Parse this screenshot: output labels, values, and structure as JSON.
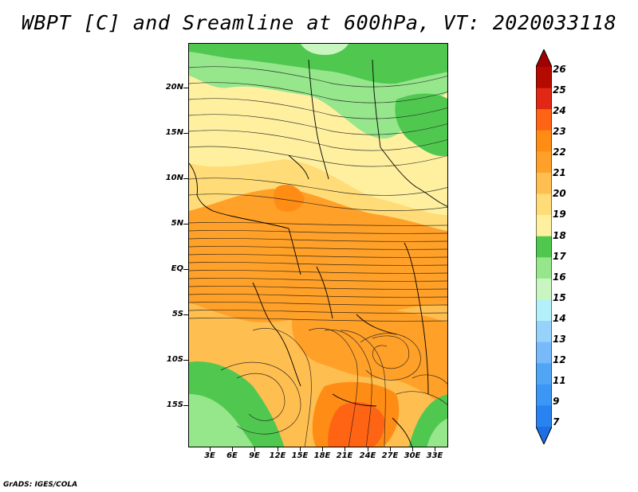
{
  "title": "WBPT [C] and Sreamline at 600hPa, VT: 2020033118",
  "footer": "GrADS: IGES/COLA",
  "lat_labels": [
    "20N",
    "15N",
    "10N",
    "5N",
    "EQ",
    "5S",
    "10S",
    "15S"
  ],
  "lon_labels": [
    "3E",
    "6E",
    "9E",
    "12E",
    "15E",
    "18E",
    "21E",
    "24E",
    "27E",
    "30E",
    "33E"
  ],
  "colorbar": {
    "levels": [
      "7",
      "9",
      "11",
      "12",
      "13",
      "14",
      "15",
      "16",
      "17",
      "18",
      "19",
      "20",
      "21",
      "22",
      "23",
      "24",
      "25",
      "26"
    ],
    "colors": [
      "#1e6ee6",
      "#2882f0",
      "#3c96f5",
      "#50a5f5",
      "#78b9fa",
      "#96d2fa",
      "#b4f0fa",
      "#c8f5c0",
      "#96e68c",
      "#50c850",
      "#fff0a0",
      "#ffdc78",
      "#ffbe50",
      "#ffa028",
      "#ff8c14",
      "#ff6414",
      "#e02814",
      "#b40a00",
      "#a00000"
    ]
  },
  "map_colors": {
    "sahara": "#fff0a0",
    "sahel": "#ffdc78",
    "warm": "#ffbe50",
    "hot": "#ffa028",
    "hotter": "#ff8c14",
    "hottest": "#ff6414",
    "green": "#50c850",
    "light_green": "#96e68c",
    "pale": "#c8f5c0"
  }
}
